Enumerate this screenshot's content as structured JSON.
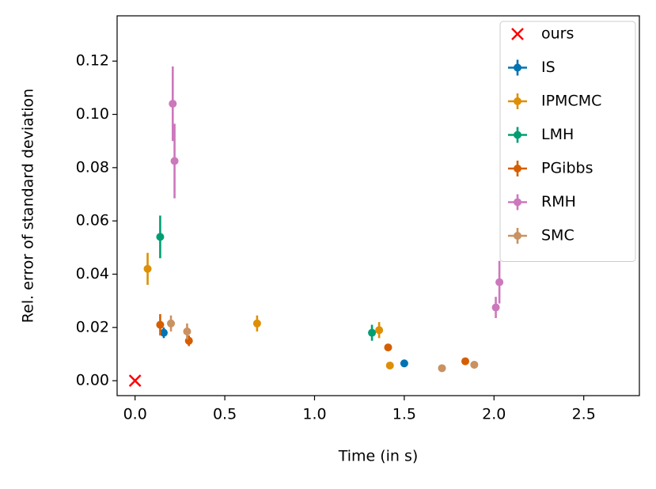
{
  "chart_data": {
    "type": "errorbar-scatter",
    "x_label": "Time (in s)",
    "y_label": "Rel. error of standard deviation",
    "xlim": [
      -0.1,
      2.81
    ],
    "ylim": [
      -0.0056,
      0.137
    ],
    "xticks": [
      {
        "value": 0,
        "label": "0.0"
      },
      0.5,
      {
        "value": 1,
        "label": "1.0"
      },
      1.5,
      {
        "value": 2,
        "label": "2.0"
      },
      2.5
    ],
    "yticks": [
      {
        "value": 0,
        "label": "0.00"
      },
      {
        "value": 0.02,
        "label": "0.02"
      },
      {
        "value": 0.04,
        "label": "0.04"
      },
      {
        "value": 0.06,
        "label": "0.06"
      },
      {
        "value": 0.08,
        "label": "0.08"
      },
      {
        "value": 0.1,
        "label": "0.10"
      },
      {
        "value": 0.12,
        "label": "0.12"
      }
    ],
    "legend": "upper right",
    "series": [
      {
        "name": "ours",
        "color": "#ff0000",
        "marker": "x",
        "x": [
          0
        ],
        "values": [
          0
        ]
      },
      {
        "name": "IS",
        "color": "#0173b2",
        "marker": "o",
        "x": [
          0.16,
          1.5
        ],
        "values": [
          0.018,
          0.0065
        ],
        "errors": [
          0.002,
          0.001
        ]
      },
      {
        "name": "IPMCMC",
        "color": "#de8f05",
        "marker": "o",
        "x": [
          0.07,
          0.68,
          1.36,
          1.42
        ],
        "values": [
          0.042,
          0.0215,
          0.019,
          0.0057
        ],
        "errors": [
          0.006,
          0.003,
          0.003,
          0.001
        ]
      },
      {
        "name": "LMH",
        "color": "#029e73",
        "marker": "o",
        "x": [
          0.14,
          1.32
        ],
        "values": [
          0.054,
          0.018
        ],
        "errors": [
          0.008,
          0.003
        ]
      },
      {
        "name": "PGibbs",
        "color": "#d55e00",
        "marker": "o",
        "x": [
          0.14,
          0.3,
          1.41,
          1.84
        ],
        "values": [
          0.021,
          0.015,
          0.0125,
          0.0073
        ],
        "errors": [
          0.004,
          0.002,
          0.001,
          0.001
        ]
      },
      {
        "name": "RMH",
        "color": "#cc78bc",
        "marker": "o",
        "x": [
          0.21,
          0.22,
          2.01,
          2.03
        ],
        "values": [
          0.104,
          0.0825,
          0.0275,
          0.037
        ],
        "errors": [
          0.014,
          0.014,
          0.004,
          0.008
        ]
      },
      {
        "name": "SMC",
        "color": "#ca9161",
        "marker": "o",
        "x": [
          0.2,
          0.29,
          1.71,
          1.89
        ],
        "values": [
          0.0215,
          0.0185,
          0.0047,
          0.006
        ],
        "errors": [
          0.003,
          0.003,
          0.001,
          0.001
        ]
      }
    ]
  }
}
